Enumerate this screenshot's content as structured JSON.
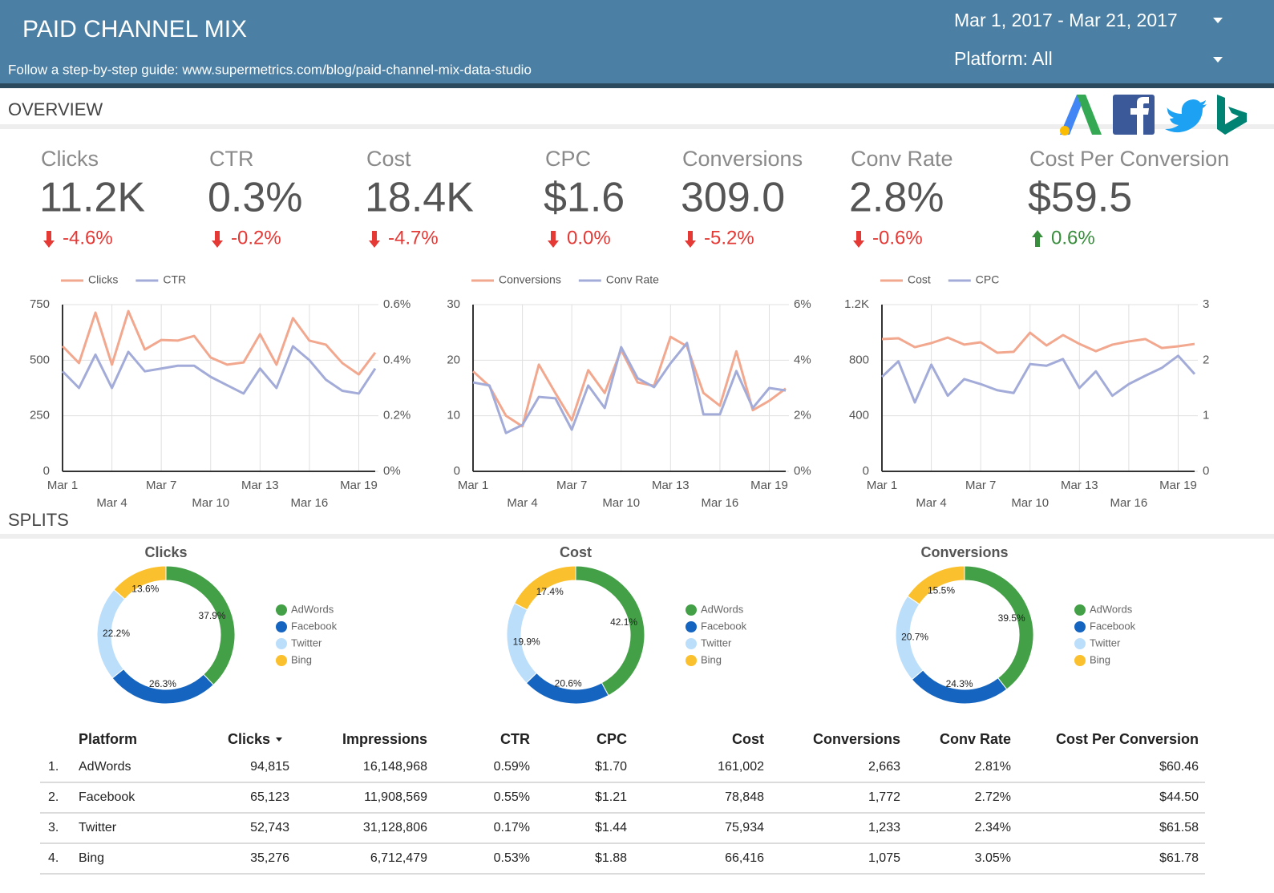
{
  "header": {
    "title": "PAID CHANNEL MIX",
    "subtitle": "Follow a step-by-step guide: www.supermetrics.com/blog/paid-channel-mix-data-studio",
    "date_range": "Mar 1, 2017 - Mar 21, 2017",
    "platform_filter": "Platform: All"
  },
  "overview": {
    "title": "OVERVIEW"
  },
  "kpis": [
    {
      "label": "Clicks",
      "value": "11.2K",
      "delta": "-4.6%",
      "trend": "down",
      "color": "#e53935"
    },
    {
      "label": "CTR",
      "value": "0.3%",
      "delta": "-0.2%",
      "trend": "down",
      "color": "#e53935"
    },
    {
      "label": "Cost",
      "value": "18.4K",
      "delta": "-4.7%",
      "trend": "down",
      "color": "#e53935"
    },
    {
      "label": "CPC",
      "value": "$1.6",
      "delta": "0.0%",
      "trend": "down",
      "color": "#e53935"
    },
    {
      "label": "Conversions",
      "value": "309.0",
      "delta": "-5.2%",
      "trend": "down",
      "color": "#e53935"
    },
    {
      "label": "Conv Rate",
      "value": "2.8%",
      "delta": "-0.6%",
      "trend": "down",
      "color": "#e53935"
    },
    {
      "label": "Cost Per Conversion",
      "value": "$59.5",
      "delta": "0.6%",
      "trend": "up",
      "color": "#388e3c"
    }
  ],
  "splits": {
    "title": "SPLITS"
  },
  "chart_data": [
    {
      "type": "line",
      "categories": [
        "Mar 1",
        null,
        null,
        "Mar 4",
        null,
        null,
        "Mar 7",
        null,
        null,
        "Mar 10",
        null,
        null,
        "Mar 13",
        null,
        null,
        "Mar 16",
        null,
        null,
        "Mar 19",
        null
      ],
      "series": [
        {
          "name": "Clicks",
          "color": "#f2a88f",
          "values": [
            563,
            487,
            714,
            480,
            721,
            548,
            591,
            588,
            609,
            512,
            480,
            490,
            617,
            480,
            689,
            588,
            570,
            487,
            436,
            534
          ]
        },
        {
          "name": "CTR",
          "color": "#a3acd8",
          "axis": "y2",
          "values": [
            0.36,
            0.3,
            0.42,
            0.3,
            0.43,
            0.36,
            0.37,
            0.38,
            0.38,
            0.34,
            0.31,
            0.28,
            0.37,
            0.3,
            0.45,
            0.4,
            0.33,
            0.29,
            0.28,
            0.37
          ]
        }
      ],
      "ylim": [
        0,
        750
      ],
      "yticks": [
        0,
        250,
        500,
        750
      ],
      "y2lim": [
        0,
        0.6
      ],
      "y2ticks": [
        {
          "value": 0,
          "label": "0%"
        },
        {
          "value": 0.2,
          "label": "0.2%"
        },
        {
          "value": 0.4,
          "label": "0.4%"
        },
        {
          "value": 0.6,
          "label": "0.6%"
        }
      ],
      "grid": true
    },
    {
      "type": "line",
      "categories": [
        "Mar 1",
        null,
        null,
        "Mar 4",
        null,
        null,
        "Mar 7",
        null,
        null,
        "Mar 10",
        null,
        null,
        "Mar 13",
        null,
        null,
        "Mar 16",
        null,
        null,
        "Mar 19",
        null
      ],
      "series": [
        {
          "name": "Conversions",
          "color": "#f2a88f",
          "values": [
            18.0,
            15.3,
            10.0,
            8.1,
            19.2,
            14.1,
            9.2,
            18.2,
            14.1,
            21.9,
            16.0,
            15.4,
            24.2,
            22.5,
            14.1,
            11.8,
            21.6,
            11.0,
            12.7,
            14.9
          ]
        },
        {
          "name": "Conv Rate",
          "color": "#a3acd8",
          "axis": "y2",
          "values": [
            3.2,
            3.09,
            1.38,
            1.67,
            2.68,
            2.63,
            1.5,
            3.09,
            2.28,
            4.47,
            3.35,
            3.03,
            3.89,
            4.62,
            2.05,
            2.05,
            3.61,
            2.28,
            3.0,
            2.91
          ]
        }
      ],
      "ylim": [
        0,
        30
      ],
      "yticks": [
        0,
        10,
        20,
        30
      ],
      "y2lim": [
        0,
        6
      ],
      "y2ticks": [
        {
          "value": 0,
          "label": "0%"
        },
        {
          "value": 2,
          "label": "2%"
        },
        {
          "value": 4,
          "label": "4%"
        },
        {
          "value": 6,
          "label": "6%"
        }
      ],
      "grid": true
    },
    {
      "type": "line",
      "categories": [
        "Mar 1",
        null,
        null,
        "Mar 4",
        null,
        null,
        "Mar 7",
        null,
        null,
        "Mar 10",
        null,
        null,
        "Mar 13",
        null,
        null,
        "Mar 16",
        null,
        null,
        "Mar 19",
        null
      ],
      "series": [
        {
          "name": "Cost",
          "color": "#f2a88f",
          "values": [
            952,
            958,
            894,
            923,
            963,
            912,
            929,
            854,
            860,
            998,
            906,
            981,
            917,
            865,
            912,
            935,
            952,
            888,
            900,
            917
          ]
        },
        {
          "name": "CPC",
          "color": "#a3acd8",
          "axis": "y2",
          "values": [
            1.7,
            1.98,
            1.24,
            1.92,
            1.36,
            1.66,
            1.57,
            1.46,
            1.41,
            1.93,
            1.9,
            2.02,
            1.5,
            1.8,
            1.36,
            1.57,
            1.72,
            1.86,
            2.08,
            1.75
          ]
        }
      ],
      "ylim": [
        0,
        1200
      ],
      "yticks": [
        0,
        400,
        800,
        {
          "value": 1200,
          "label": "1.2K"
        }
      ],
      "y2lim": [
        0,
        3
      ],
      "y2ticks": [
        0,
        1,
        2,
        3
      ],
      "grid": true
    },
    {
      "type": "donut",
      "title": "Clicks",
      "categories": [
        "AdWords",
        "Facebook",
        "Twitter",
        "Bing"
      ],
      "colors": [
        "#43a047",
        "#1565c0",
        "#bbdefb",
        "#fbc02d"
      ],
      "values": [
        37.9,
        26.3,
        22.2,
        13.6
      ],
      "value_labels": [
        "37.9%",
        "26.3%",
        "22.2%",
        "13.6%"
      ]
    },
    {
      "type": "donut",
      "title": "Cost",
      "categories": [
        "AdWords",
        "Facebook",
        "Twitter",
        "Bing"
      ],
      "colors": [
        "#43a047",
        "#1565c0",
        "#bbdefb",
        "#fbc02d"
      ],
      "values": [
        42.1,
        20.6,
        19.9,
        17.4
      ],
      "value_labels": [
        "42.1%",
        "20.6%",
        "19.9%",
        "17.4%"
      ]
    },
    {
      "type": "donut",
      "title": "Conversions",
      "categories": [
        "AdWords",
        "Facebook",
        "Twitter",
        "Bing"
      ],
      "colors": [
        "#43a047",
        "#1565c0",
        "#bbdefb",
        "#fbc02d"
      ],
      "values": [
        39.5,
        24.3,
        20.7,
        15.5
      ],
      "value_labels": [
        "39.5%",
        "24.3%",
        "20.7%",
        "15.5%"
      ]
    }
  ],
  "table": {
    "headers": [
      "Platform",
      "Clicks",
      "Impressions",
      "CTR",
      "CPC",
      "Cost",
      "Conversions",
      "Conv Rate",
      "Cost Per Conversion"
    ],
    "rows": [
      {
        "rank": "1.",
        "cells": [
          "AdWords",
          "94,815",
          "16,148,968",
          "0.59%",
          "$1.70",
          "161,002",
          "2,663",
          "2.81%",
          "$60.46"
        ]
      },
      {
        "rank": "2.",
        "cells": [
          "Facebook",
          "65,123",
          "11,908,569",
          "0.55%",
          "$1.21",
          "78,848",
          "1,772",
          "2.72%",
          "$44.50"
        ]
      },
      {
        "rank": "3.",
        "cells": [
          "Twitter",
          "52,743",
          "31,128,806",
          "0.17%",
          "$1.44",
          "75,934",
          "1,233",
          "2.34%",
          "$61.58"
        ]
      },
      {
        "rank": "4.",
        "cells": [
          "Bing",
          "35,276",
          "6,712,479",
          "0.53%",
          "$1.88",
          "66,416",
          "1,075",
          "3.05%",
          "$61.78"
        ]
      }
    ]
  }
}
